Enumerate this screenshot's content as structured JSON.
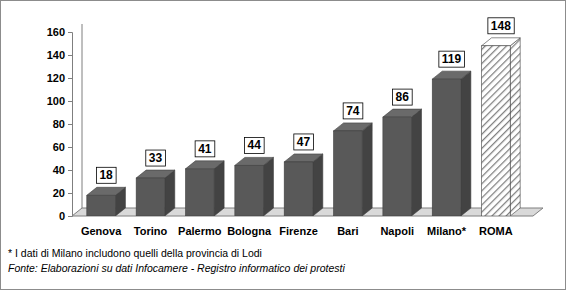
{
  "chart_data": {
    "type": "bar",
    "categories": [
      "Genova",
      "Torino",
      "Palermo",
      "Bologna",
      "Firenze",
      "Bari",
      "Napoli",
      "Milano*",
      "ROMA"
    ],
    "values": [
      18,
      33,
      41,
      44,
      47,
      74,
      86,
      119,
      148
    ],
    "color": "#595959",
    "colors": [
      "#595959",
      "#595959",
      "#595959",
      "#595959",
      "#595959",
      "#595959",
      "#595959",
      "#595959",
      "#7f7f7f"
    ],
    "ylim": [
      0,
      160
    ],
    "yticks": [
      0,
      20,
      40,
      60,
      80,
      100,
      120,
      140,
      160
    ],
    "grid": false,
    "data_labels": true,
    "annotations": [
      "* I dati di Milano includono quelli della provincia di Lodi",
      "Fonte: Elaborazioni su dati Infocamere - Registro informatico dei protesti"
    ]
  }
}
